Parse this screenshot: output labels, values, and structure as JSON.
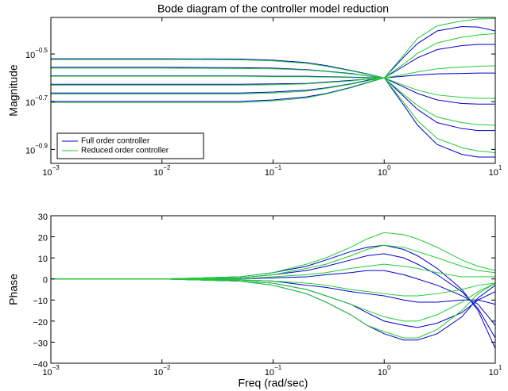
{
  "chart_data": [
    {
      "type": "line",
      "title": "Bode diagram of the controller model reduction",
      "y_label": "Magnitude",
      "x_log": true,
      "y_log": true,
      "grid": false,
      "legend": "lower left",
      "x": [
        0.001,
        0.01,
        0.05,
        0.1,
        0.2,
        0.3,
        0.5,
        0.7,
        1,
        1.5,
        2,
        3,
        5,
        7,
        10
      ],
      "xlim": [
        0.001,
        10
      ],
      "xticks": [
        {
          "value": 0.001,
          "label": "10",
          "exponent": "−3"
        },
        {
          "value": 0.01,
          "label": "10",
          "exponent": "−2"
        },
        {
          "value": 0.1,
          "label": "10",
          "exponent": "−1"
        },
        {
          "value": 1,
          "label": "10",
          "exponent": "0"
        },
        {
          "value": 10,
          "label": "10",
          "exponent": "1"
        }
      ],
      "ylim": [
        0.11,
        0.45
      ],
      "yticks": [
        {
          "value": 0.3162,
          "label": "10",
          "exponent": "−0.5"
        },
        {
          "value": 0.1995,
          "label": "10",
          "exponent": "−0.7"
        },
        {
          "value": 0.1259,
          "label": "10",
          "exponent": "−0.9"
        }
      ],
      "series": [
        {
          "name": "Full order controller",
          "color": "#0000cc",
          "values": [
            [
              0.302,
              0.302,
              0.301,
              0.298,
              0.291,
              0.283,
              0.27,
              0.261,
              0.251,
              0.193,
              0.159,
              0.132,
              0.12,
              0.117,
              0.117
            ],
            [
              0.278,
              0.278,
              0.277,
              0.276,
              0.272,
              0.268,
              0.262,
              0.256,
              0.251,
              0.21,
              0.185,
              0.163,
              0.154,
              0.151,
              0.151
            ],
            [
              0.256,
              0.256,
              0.256,
              0.255,
              0.255,
              0.254,
              0.253,
              0.252,
              0.251,
              0.23,
              0.216,
              0.203,
              0.196,
              0.195,
              0.195
            ],
            [
              0.236,
              0.236,
              0.236,
              0.237,
              0.238,
              0.241,
              0.245,
              0.248,
              0.251,
              0.255,
              0.258,
              0.261,
              0.262,
              0.263,
              0.263
            ],
            [
              0.217,
              0.217,
              0.217,
              0.219,
              0.223,
              0.228,
              0.237,
              0.245,
              0.251,
              0.281,
              0.305,
              0.33,
              0.343,
              0.347,
              0.347
            ],
            [
              0.2,
              0.2,
              0.2,
              0.203,
              0.209,
              0.216,
              0.229,
              0.24,
              0.251,
              0.307,
              0.35,
              0.395,
              0.412,
              0.41,
              0.395
            ]
          ]
        },
        {
          "name": "Reduced order controller",
          "color": "#22cc33",
          "values": [
            [
              0.3,
              0.3,
              0.299,
              0.296,
              0.289,
              0.281,
              0.269,
              0.26,
              0.251,
              0.198,
              0.166,
              0.14,
              0.128,
              0.124,
              0.122
            ],
            [
              0.276,
              0.276,
              0.275,
              0.274,
              0.271,
              0.267,
              0.261,
              0.256,
              0.251,
              0.214,
              0.192,
              0.172,
              0.163,
              0.16,
              0.159
            ],
            [
              0.255,
              0.255,
              0.255,
              0.254,
              0.254,
              0.253,
              0.252,
              0.251,
              0.251,
              0.234,
              0.223,
              0.213,
              0.208,
              0.206,
              0.206
            ],
            [
              0.234,
              0.234,
              0.234,
              0.235,
              0.237,
              0.24,
              0.244,
              0.248,
              0.251,
              0.259,
              0.266,
              0.274,
              0.279,
              0.281,
              0.282
            ],
            [
              0.215,
              0.215,
              0.215,
              0.217,
              0.221,
              0.227,
              0.236,
              0.244,
              0.251,
              0.287,
              0.318,
              0.352,
              0.372,
              0.38,
              0.385
            ],
            [
              0.198,
              0.198,
              0.198,
              0.201,
              0.207,
              0.215,
              0.228,
              0.239,
              0.251,
              0.313,
              0.368,
              0.415,
              0.435,
              0.443,
              0.445
            ]
          ]
        }
      ]
    },
    {
      "type": "line",
      "y_label": "Phase",
      "x_label": "Freq (rad/sec)",
      "x_log": true,
      "y_log": false,
      "grid": false,
      "x": [
        0.001,
        0.01,
        0.05,
        0.1,
        0.2,
        0.3,
        0.5,
        0.7,
        1,
        1.5,
        2,
        3,
        5,
        7,
        10
      ],
      "xlim": [
        0.001,
        10
      ],
      "xticks": [
        {
          "value": 0.001,
          "label": "10",
          "exponent": "−3"
        },
        {
          "value": 0.01,
          "label": "10",
          "exponent": "−2"
        },
        {
          "value": 0.1,
          "label": "10",
          "exponent": "−1"
        },
        {
          "value": 1,
          "label": "10",
          "exponent": "0"
        },
        {
          "value": 10,
          "label": "10",
          "exponent": "1"
        }
      ],
      "ylim": [
        -40,
        30
      ],
      "yticks": [
        {
          "value": -40,
          "label": "−40"
        },
        {
          "value": -30,
          "label": "−30"
        },
        {
          "value": -20,
          "label": "−20"
        },
        {
          "value": -10,
          "label": "−10"
        },
        0,
        10,
        20,
        30
      ],
      "series": [
        {
          "color": "#0000cc",
          "values": [
            [
              0,
              0,
              1,
              3,
              6,
              9,
              13,
              15,
              16,
              14,
              11,
              5,
              -5,
              -15,
              -33
            ],
            [
              0,
              0,
              0.5,
              2,
              4,
              6,
              9,
              11,
              12,
              10,
              7,
              2,
              -6,
              -14,
              -28
            ],
            [
              0,
              0,
              0,
              0.5,
              1,
              2,
              3,
              4,
              4,
              2,
              0,
              -3,
              -8,
              -12,
              -22
            ],
            [
              0,
              0,
              -0.5,
              -1,
              -3,
              -4,
              -6,
              -7,
              -8,
              -10,
              -11,
              -11,
              -10,
              -10,
              -12
            ],
            [
              0,
              0,
              -1,
              -2,
              -5,
              -8,
              -12,
              -16,
              -20,
              -22,
              -23,
              -21,
              -16,
              -10,
              -6
            ],
            [
              0,
              0,
              -1,
              -3,
              -7,
              -11,
              -17,
              -22,
              -26,
              -29,
              -29,
              -26,
              -18,
              -9,
              -3
            ]
          ]
        },
        {
          "color": "#22cc33",
          "values": [
            [
              0,
              0,
              1,
              3,
              7,
              10,
              15,
              19,
              22,
              21,
              19,
              15,
              9,
              6,
              4
            ],
            [
              0,
              0,
              0.5,
              2,
              5,
              7,
              11,
              14,
              16,
              15,
              13,
              10,
              6,
              4,
              3
            ],
            [
              0,
              0,
              0,
              1,
              2,
              3,
              5,
              6,
              7,
              6,
              5,
              3,
              1,
              1,
              1
            ],
            [
              0,
              0,
              -0.5,
              -1,
              -2,
              -3,
              -5,
              -6,
              -7,
              -8,
              -8,
              -7,
              -5,
              -3,
              -2
            ],
            [
              0,
              0,
              -1,
              -2,
              -5,
              -8,
              -12,
              -15,
              -18,
              -20,
              -20,
              -17,
              -11,
              -6,
              -2
            ],
            [
              0,
              0,
              -1,
              -3,
              -7,
              -11,
              -17,
              -22,
              -25,
              -28,
              -28,
              -24,
              -15,
              -7,
              -2
            ]
          ]
        }
      ]
    }
  ]
}
